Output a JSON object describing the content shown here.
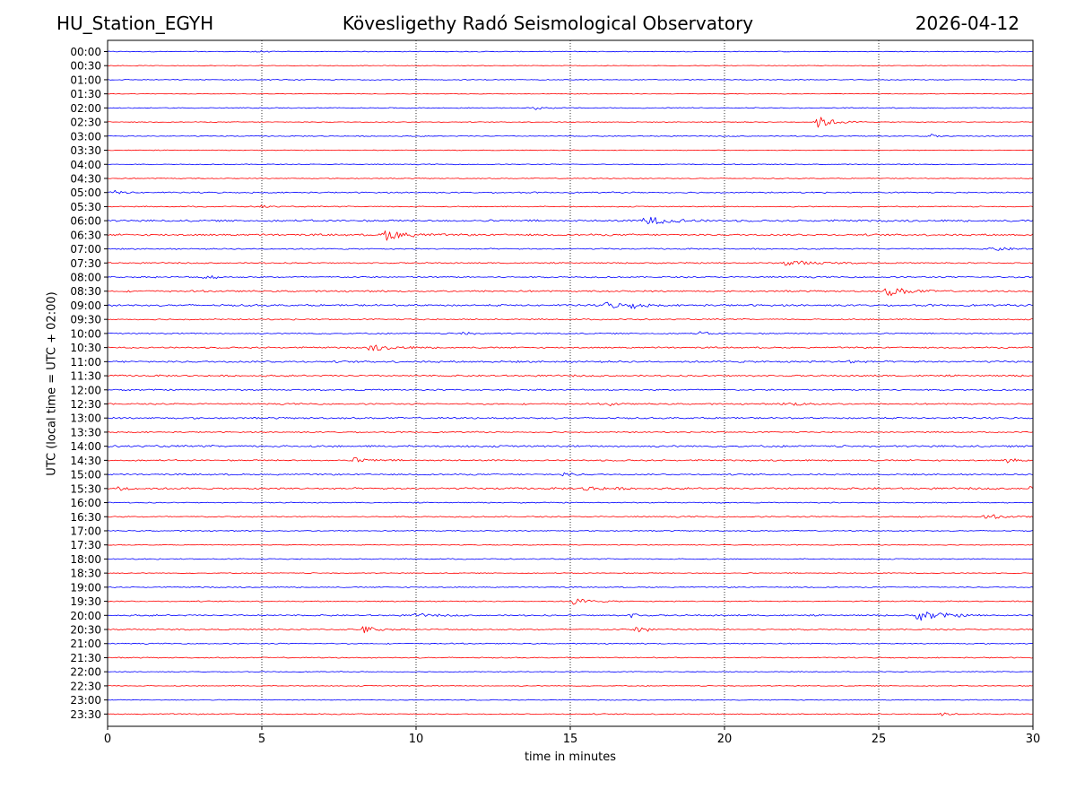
{
  "header": {
    "station": "HU_Station_EGYH",
    "title": "Kövesligethy Radó Seismological Observatory",
    "date": "2026-04-12"
  },
  "chart_data": {
    "type": "line",
    "title": "Kövesligethy Radó Seismological Observatory",
    "xlabel": "time in minutes",
    "ylabel": "UTC (local time = UTC + 02:00)",
    "xlim": [
      0,
      30
    ],
    "xticks": [
      0,
      5,
      10,
      15,
      20,
      25,
      30
    ],
    "grid": "vertical dotted at x ticks",
    "trace_colors": [
      "#0000ff",
      "#ff0000"
    ],
    "rows": [
      "00:00",
      "00:30",
      "01:00",
      "01:30",
      "02:00",
      "02:30",
      "03:00",
      "03:30",
      "04:00",
      "04:30",
      "05:00",
      "05:30",
      "06:00",
      "06:30",
      "07:00",
      "07:30",
      "08:00",
      "08:30",
      "09:00",
      "09:30",
      "10:00",
      "10:30",
      "11:00",
      "11:30",
      "12:00",
      "12:30",
      "13:00",
      "13:30",
      "14:00",
      "14:30",
      "15:00",
      "15:30",
      "16:00",
      "16:30",
      "17:00",
      "17:30",
      "18:00",
      "18:30",
      "19:00",
      "19:30",
      "20:00",
      "20:30",
      "21:00",
      "21:30",
      "22:00",
      "22:30",
      "23:00",
      "23:30"
    ],
    "noise_level": [
      0.4,
      0.3,
      0.4,
      0.3,
      0.45,
      0.35,
      0.45,
      0.35,
      0.4,
      0.4,
      0.6,
      0.5,
      0.9,
      0.9,
      0.6,
      0.6,
      0.7,
      0.8,
      0.9,
      0.6,
      0.6,
      0.7,
      0.9,
      0.8,
      0.7,
      0.7,
      0.8,
      0.6,
      0.9,
      0.7,
      0.7,
      0.9,
      0.5,
      0.6,
      0.5,
      0.4,
      0.5,
      0.4,
      0.5,
      0.5,
      0.7,
      0.7,
      0.5,
      0.5,
      0.4,
      0.4,
      0.4,
      0.5
    ],
    "events": [
      {
        "row": "00:00",
        "minute": 4.8,
        "amp": 2,
        "dur": 0.3
      },
      {
        "row": "02:00",
        "minute": 13.9,
        "amp": 2,
        "dur": 0.5
      },
      {
        "row": "02:30",
        "minute": 23.0,
        "amp": 7,
        "dur": 0.8
      },
      {
        "row": "03:00",
        "minute": 26.7,
        "amp": 2,
        "dur": 0.3
      },
      {
        "row": "05:00",
        "minute": 0.2,
        "amp": 2.5,
        "dur": 0.5
      },
      {
        "row": "05:30",
        "minute": 5.0,
        "amp": 1.5,
        "dur": 0.4
      },
      {
        "row": "06:00",
        "minute": 17.4,
        "amp": 5,
        "dur": 1.2
      },
      {
        "row": "06:30",
        "minute": 9.0,
        "amp": 6,
        "dur": 1.0
      },
      {
        "row": "07:00",
        "minute": 28.7,
        "amp": 2,
        "dur": 1.0
      },
      {
        "row": "07:30",
        "minute": 22.0,
        "amp": 3,
        "dur": 1.5
      },
      {
        "row": "08:00",
        "minute": 3.1,
        "amp": 4,
        "dur": 0.4
      },
      {
        "row": "08:30",
        "minute": 25.3,
        "amp": 5,
        "dur": 1.0
      },
      {
        "row": "09:00",
        "minute": 16.2,
        "amp": 4,
        "dur": 0.6
      },
      {
        "row": "09:00",
        "minute": 17.0,
        "amp": 3.5,
        "dur": 0.5
      },
      {
        "row": "10:00",
        "minute": 11.5,
        "amp": 2,
        "dur": 0.4
      },
      {
        "row": "10:00",
        "minute": 19.2,
        "amp": 2,
        "dur": 0.4
      },
      {
        "row": "10:30",
        "minute": 8.5,
        "amp": 3.5,
        "dur": 1.2
      },
      {
        "row": "11:00",
        "minute": 24.0,
        "amp": 2,
        "dur": 0.5
      },
      {
        "row": "12:30",
        "minute": 16.3,
        "amp": 2,
        "dur": 0.3
      },
      {
        "row": "12:30",
        "minute": 22.0,
        "amp": 2,
        "dur": 1.0
      },
      {
        "row": "14:30",
        "minute": 8.0,
        "amp": 2.5,
        "dur": 0.8
      },
      {
        "row": "14:30",
        "minute": 29.2,
        "amp": 3,
        "dur": 0.4
      },
      {
        "row": "15:00",
        "minute": 14.8,
        "amp": 2,
        "dur": 0.5
      },
      {
        "row": "15:30",
        "minute": 0.4,
        "amp": 3,
        "dur": 0.4
      },
      {
        "row": "15:30",
        "minute": 15.5,
        "amp": 2.5,
        "dur": 1.0
      },
      {
        "row": "15:30",
        "minute": 29.9,
        "amp": 3,
        "dur": 0.2
      },
      {
        "row": "16:30",
        "minute": 28.5,
        "amp": 2.5,
        "dur": 0.8
      },
      {
        "row": "19:30",
        "minute": 15.1,
        "amp": 3.5,
        "dur": 0.8
      },
      {
        "row": "20:00",
        "minute": 26.3,
        "amp": 6,
        "dur": 1.2
      },
      {
        "row": "20:00",
        "minute": 17.0,
        "amp": 3,
        "dur": 0.3
      },
      {
        "row": "20:00",
        "minute": 10.0,
        "amp": 2,
        "dur": 0.8
      },
      {
        "row": "20:30",
        "minute": 8.3,
        "amp": 4,
        "dur": 0.6
      },
      {
        "row": "20:30",
        "minute": 17.2,
        "amp": 4.5,
        "dur": 0.5
      },
      {
        "row": "23:30",
        "minute": 27.0,
        "amp": 2,
        "dur": 0.4
      }
    ]
  }
}
